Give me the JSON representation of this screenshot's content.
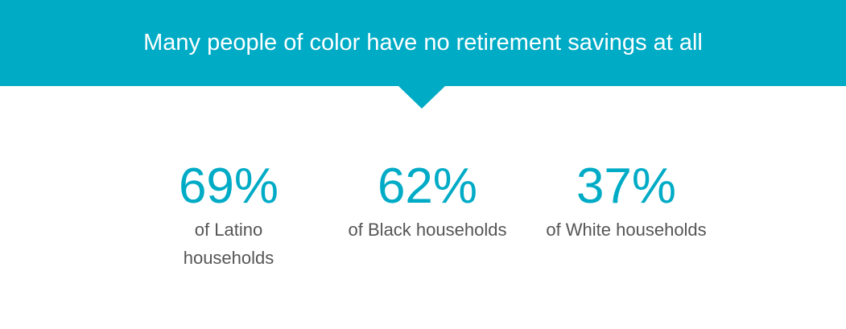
{
  "header": {
    "title": "Many people of color have no retirement savings at all"
  },
  "stats": [
    {
      "value": "69%",
      "label": "of Latino households"
    },
    {
      "value": "62%",
      "label": "of Black households"
    },
    {
      "value": "37%",
      "label": "of White households"
    }
  ]
}
